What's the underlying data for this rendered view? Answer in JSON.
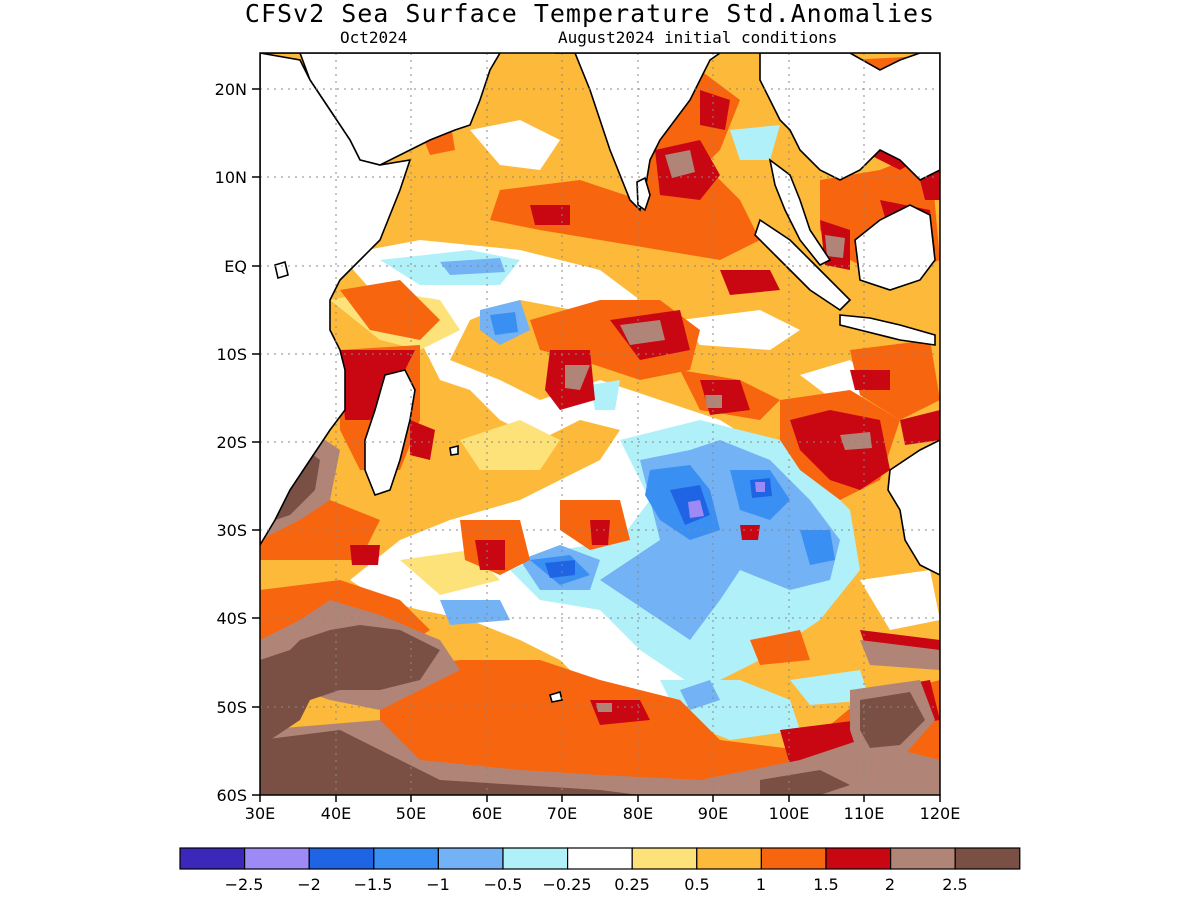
{
  "title": "CFSv2 Sea Surface Temperature Std.Anomalies",
  "subtitle_left": "Oct2024",
  "subtitle_right": "August2024 initial conditions",
  "map": {
    "lon_range": [
      30,
      120
    ],
    "lat_range": [
      -60,
      24
    ],
    "lat_ticks": [
      "20N",
      "10N",
      "EQ",
      "10S",
      "20S",
      "30S",
      "40S",
      "50S",
      "60S"
    ],
    "lon_ticks": [
      "30E",
      "40E",
      "50E",
      "60E",
      "70E",
      "80E",
      "90E",
      "100E",
      "110E",
      "120E"
    ]
  },
  "colorbar": {
    "colors": [
      "#3b27b9",
      "#9e8af5",
      "#2064e6",
      "#3a8ff2",
      "#72b2f5",
      "#b0f0f9",
      "#ffffff",
      "#fde27a",
      "#fcb93a",
      "#f8650f",
      "#c80712",
      "#b08578",
      "#7a5044"
    ],
    "labels": [
      "−2.5",
      "−2",
      "−1.5",
      "−1",
      "−0.5",
      "−0.25",
      "0.25",
      "0.5",
      "1",
      "1.5",
      "2",
      "2.5"
    ]
  }
}
